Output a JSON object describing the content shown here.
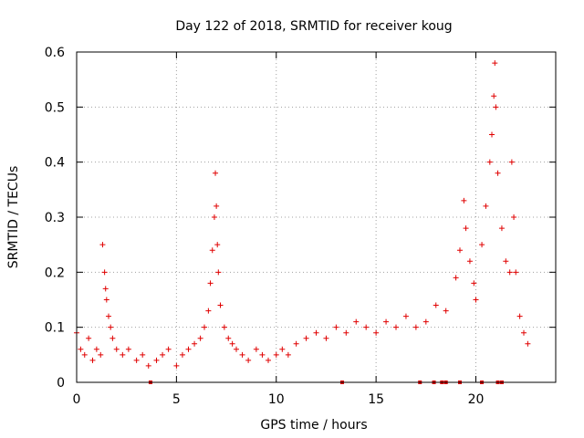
{
  "chart_data": {
    "type": "scatter",
    "title": "Day 122 of 2018, SRMTID for receiver koug",
    "xlabel": "GPS time / hours",
    "ylabel": "SRMTID / TECUs",
    "xlim": [
      0,
      24
    ],
    "ylim": [
      0,
      0.6
    ],
    "xticks": [
      0,
      5,
      10,
      15,
      20
    ],
    "xtick_labels": [
      "0",
      "5",
      "10",
      "15",
      "20"
    ],
    "yticks": [
      0,
      0.1,
      0.2,
      0.3,
      0.4,
      0.5,
      0.6
    ],
    "ytick_labels": [
      "0",
      "0.1",
      "0.2",
      "0.3",
      "0.4",
      "0.5",
      "0.6"
    ],
    "grid": true,
    "marker": "+",
    "color": "#e00000",
    "series": [
      {
        "name": "SRMTID",
        "points": [
          [
            0.0,
            0.09
          ],
          [
            0.2,
            0.06
          ],
          [
            0.4,
            0.05
          ],
          [
            0.6,
            0.08
          ],
          [
            0.8,
            0.04
          ],
          [
            1.0,
            0.06
          ],
          [
            1.2,
            0.05
          ],
          [
            1.3,
            0.25
          ],
          [
            1.4,
            0.2
          ],
          [
            1.45,
            0.17
          ],
          [
            1.5,
            0.15
          ],
          [
            1.6,
            0.12
          ],
          [
            1.7,
            0.1
          ],
          [
            1.8,
            0.08
          ],
          [
            2.0,
            0.06
          ],
          [
            2.3,
            0.05
          ],
          [
            2.6,
            0.06
          ],
          [
            3.0,
            0.04
          ],
          [
            3.3,
            0.05
          ],
          [
            3.6,
            0.03
          ],
          [
            4.0,
            0.04
          ],
          [
            4.3,
            0.05
          ],
          [
            4.6,
            0.06
          ],
          [
            5.0,
            0.03
          ],
          [
            5.3,
            0.05
          ],
          [
            5.6,
            0.06
          ],
          [
            5.9,
            0.07
          ],
          [
            6.2,
            0.08
          ],
          [
            6.4,
            0.1
          ],
          [
            6.6,
            0.13
          ],
          [
            6.7,
            0.18
          ],
          [
            6.8,
            0.24
          ],
          [
            6.9,
            0.3
          ],
          [
            6.95,
            0.38
          ],
          [
            7.0,
            0.32
          ],
          [
            7.05,
            0.25
          ],
          [
            7.1,
            0.2
          ],
          [
            7.2,
            0.14
          ],
          [
            7.4,
            0.1
          ],
          [
            7.6,
            0.08
          ],
          [
            7.8,
            0.07
          ],
          [
            8.0,
            0.06
          ],
          [
            8.3,
            0.05
          ],
          [
            8.6,
            0.04
          ],
          [
            9.0,
            0.06
          ],
          [
            9.3,
            0.05
          ],
          [
            9.6,
            0.04
          ],
          [
            10.0,
            0.05
          ],
          [
            10.3,
            0.06
          ],
          [
            10.6,
            0.05
          ],
          [
            11.0,
            0.07
          ],
          [
            11.5,
            0.08
          ],
          [
            12.0,
            0.09
          ],
          [
            12.5,
            0.08
          ],
          [
            13.0,
            0.1
          ],
          [
            13.5,
            0.09
          ],
          [
            14.0,
            0.11
          ],
          [
            14.5,
            0.1
          ],
          [
            15.0,
            0.09
          ],
          [
            15.5,
            0.11
          ],
          [
            16.0,
            0.1
          ],
          [
            16.5,
            0.12
          ],
          [
            17.0,
            0.1
          ],
          [
            17.5,
            0.11
          ],
          [
            18.0,
            0.14
          ],
          [
            18.5,
            0.13
          ],
          [
            19.0,
            0.19
          ],
          [
            19.2,
            0.24
          ],
          [
            19.4,
            0.33
          ],
          [
            19.5,
            0.28
          ],
          [
            19.7,
            0.22
          ],
          [
            19.9,
            0.18
          ],
          [
            20.0,
            0.15
          ],
          [
            20.3,
            0.25
          ],
          [
            20.5,
            0.32
          ],
          [
            20.7,
            0.4
          ],
          [
            20.8,
            0.45
          ],
          [
            20.9,
            0.52
          ],
          [
            20.95,
            0.58
          ],
          [
            21.0,
            0.5
          ],
          [
            21.1,
            0.38
          ],
          [
            21.3,
            0.28
          ],
          [
            21.5,
            0.22
          ],
          [
            21.7,
            0.2
          ],
          [
            21.8,
            0.4
          ],
          [
            21.9,
            0.3
          ],
          [
            22.0,
            0.2
          ],
          [
            22.2,
            0.12
          ],
          [
            22.4,
            0.09
          ],
          [
            22.6,
            0.07
          ]
        ],
        "baseline_markers_x": [
          3.7,
          13.3,
          17.2,
          17.9,
          18.3,
          18.5,
          19.2,
          20.3,
          21.1,
          21.3
        ]
      }
    ]
  }
}
